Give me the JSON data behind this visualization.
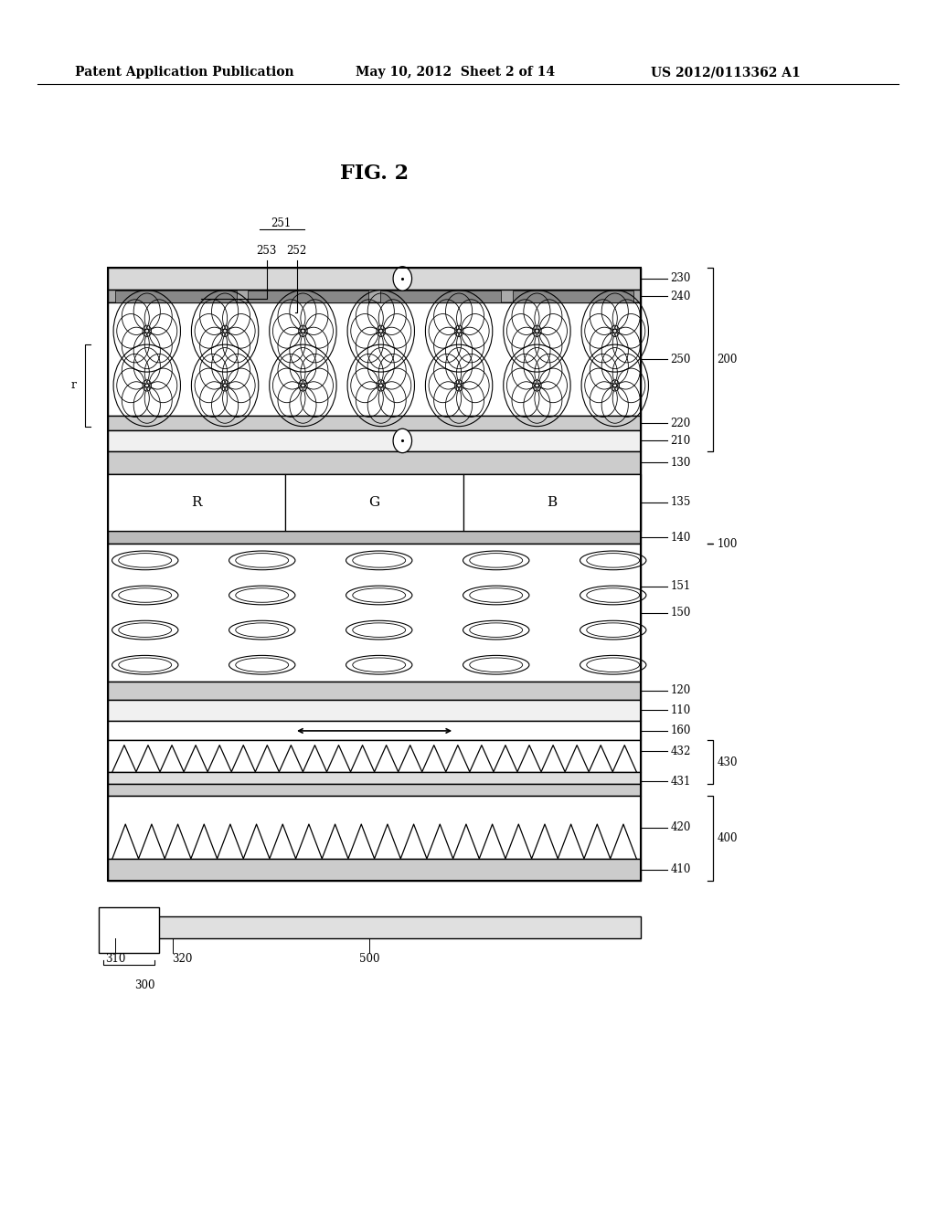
{
  "title": "FIG. 2",
  "header_left": "Patent Application Publication",
  "header_mid": "May 10, 2012  Sheet 2 of 14",
  "header_right": "US 2012/0113362 A1",
  "bg_color": "#ffffff",
  "dl": 0.115,
  "dr": 0.685,
  "layers": {
    "230": {
      "yb": 0.76,
      "yt": 0.778
    },
    "240": {
      "yb": 0.749,
      "yt": 0.76
    },
    "250": {
      "yb": 0.655,
      "yt": 0.749
    },
    "220": {
      "yb": 0.643,
      "yt": 0.655
    },
    "210": {
      "yb": 0.626,
      "yt": 0.643
    },
    "130": {
      "yb": 0.607,
      "yt": 0.626
    },
    "135": {
      "yb": 0.56,
      "yt": 0.607
    },
    "140": {
      "yb": 0.549,
      "yt": 0.56
    },
    "150": {
      "yb": 0.435,
      "yt": 0.549
    },
    "120": {
      "yb": 0.42,
      "yt": 0.435
    },
    "110": {
      "yb": 0.402,
      "yt": 0.42
    },
    "160": {
      "yb": 0.386,
      "yt": 0.402
    },
    "432": {
      "yb": 0.36,
      "yt": 0.386
    },
    "431": {
      "yb": 0.35,
      "yt": 0.36
    },
    "gap430": {
      "yb": 0.34,
      "yt": 0.35
    },
    "420": {
      "yb": 0.288,
      "yt": 0.34
    },
    "410": {
      "yb": 0.27,
      "yt": 0.288
    }
  },
  "flower_rows": [
    0.73,
    0.27
  ],
  "n_flowers": 7,
  "lc_rows": 4,
  "lc_cols": 5
}
